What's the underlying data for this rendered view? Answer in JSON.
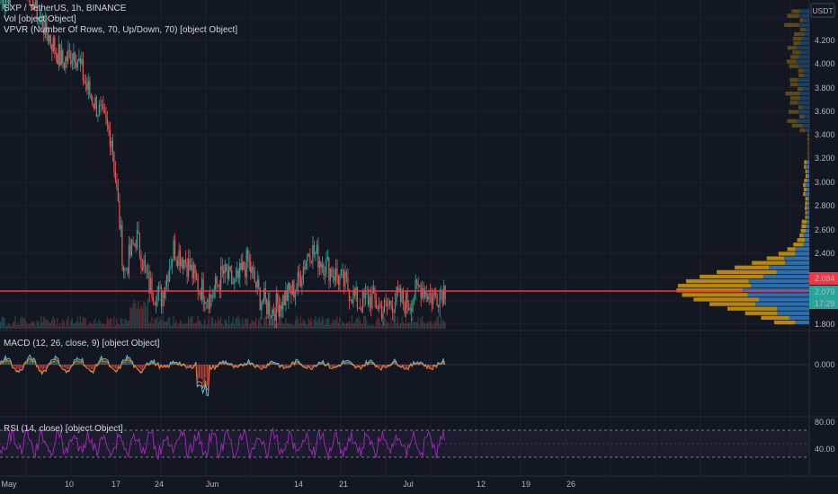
{
  "legend": {
    "symbol": "SXP / TetherUS, 1h, BINANCE",
    "vol": "Vol [object Object]",
    "vpvr": "VPVR (Number Of Rows, 70, Up/Down, 70) [object Object]",
    "macd": "MACD (12, 26, close, 9) [object Object]",
    "rsi": "RSI (14, close) [object Object]"
  },
  "currency_badge": "USDT",
  "price_axis": [
    "4.200",
    "4.000",
    "3.800",
    "3.600",
    "3.400",
    "3.200",
    "3.000",
    "2.800",
    "2.600",
    "2.400",
    "1.800"
  ],
  "price_tags": {
    "top_red": "2.084",
    "last": "2.079",
    "countdown": "17:29"
  },
  "macd_axis": "0.000",
  "rsi_axis": [
    "80.00",
    "40.00"
  ],
  "time_axis": [
    "May",
    "10",
    "17",
    "24",
    "Jun",
    "14",
    "21",
    "Jul",
    "12",
    "19",
    "26"
  ],
  "colors": {
    "background": "#131722",
    "up": "#26a69a",
    "down": "#ef5350",
    "price_line": "#f23645",
    "vp_up": "#2b6fae",
    "vp_down": "#b8860b",
    "rsi": "#9c27b0",
    "macd": "#2962ff",
    "signal": "#ff6d00"
  },
  "chart_data": {
    "type": "line",
    "title": "SXP / TetherUS, 1h, BINANCE",
    "ylim": [
      1.75,
      4.35
    ],
    "series": [
      {
        "x": [
          "May 1",
          "May 3",
          "May 5",
          "May 7",
          "May 9",
          "May 11",
          "May 13",
          "May 15",
          "May 17",
          "May 19",
          "May 20",
          "May 21",
          "May 22",
          "May 23",
          "May 25",
          "May 27",
          "May 29",
          "May 31",
          "Jun 2",
          "Jun 4",
          "Jun 6",
          "Jun 8",
          "Jun 10",
          "Jun 12",
          "Jun 14",
          "Jun 15",
          "Jun 16",
          "Jun 18",
          "Jun 20",
          "Jun 22",
          "Jun 24",
          "Jun 26",
          "Jun 28",
          "Jun 30",
          "Jul 2",
          "Jul 4",
          "Jul 6"
        ],
        "y": [
          4.4,
          4.5,
          4.6,
          4.3,
          4.1,
          3.9,
          4.0,
          3.7,
          3.5,
          3.3,
          2.2,
          2.5,
          2.1,
          2.0,
          2.4,
          2.3,
          2.1,
          2.0,
          2.2,
          2.1,
          2.3,
          2.0,
          1.9,
          2.0,
          2.1,
          2.4,
          2.3,
          2.2,
          2.1,
          1.95,
          2.0,
          1.9,
          2.0,
          1.95,
          2.1,
          2.0,
          2.08
        ]
      }
    ],
    "volume_profile_bins": [
      2.0,
      2.1,
      2.2,
      2.3,
      2.4,
      2.5,
      2.6
    ],
    "rsi_levels": [
      70,
      50,
      30
    ]
  }
}
